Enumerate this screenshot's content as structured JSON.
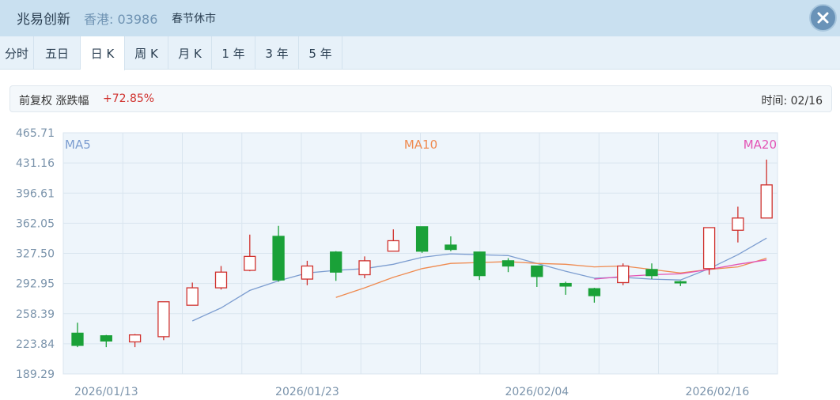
{
  "header": {
    "name": "兆易创新",
    "market_code": "香港: 03986",
    "status": "春节休市",
    "close_icon": "close-icon"
  },
  "tabs": [
    {
      "label": "分时",
      "active": false
    },
    {
      "label": "五日",
      "active": false
    },
    {
      "label": "日 K",
      "active": true
    },
    {
      "label": "周 K",
      "active": false
    },
    {
      "label": "月 K",
      "active": false
    },
    {
      "label": "1 年",
      "active": false
    },
    {
      "label": "3 年",
      "active": false
    },
    {
      "label": "5 年",
      "active": false
    }
  ],
  "info": {
    "label": "前复权 涨跌幅",
    "change": "+72.85%",
    "time": "时间: 02/16"
  },
  "colors": {
    "up": "#d0312d",
    "down": "#1aa138",
    "ma5": "#7c9dd0",
    "ma10": "#ef8a4f",
    "ma20": "#e354b5",
    "plot_bg": "#eef5fb",
    "grid": "#d9e5ef"
  },
  "chart_data": {
    "type": "candlestick",
    "ylim": [
      189.29,
      465.71
    ],
    "y_ticks": [
      "465.71",
      "431.16",
      "396.61",
      "362.05",
      "327.50",
      "292.95",
      "258.39",
      "223.84",
      "189.29"
    ],
    "x_labels": [
      {
        "index": 1,
        "label": "2026/01/13"
      },
      {
        "index": 8,
        "label": "2026/01/23"
      },
      {
        "index": 16,
        "label": "2026/02/04"
      },
      {
        "index": 23,
        "label": "2026/02/16"
      }
    ],
    "legend": [
      {
        "name": "MA5",
        "color": "#7c9dd0"
      },
      {
        "name": "MA10",
        "color": "#ef8a4f"
      },
      {
        "name": "MA20",
        "color": "#e354b5"
      }
    ],
    "candles": [
      {
        "open": 236,
        "close": 222,
        "high": 248,
        "low": 220
      },
      {
        "open": 233,
        "close": 227,
        "high": 234,
        "low": 220
      },
      {
        "open": 226,
        "close": 234,
        "high": 235,
        "low": 220
      },
      {
        "open": 232,
        "close": 272,
        "high": 272,
        "low": 228
      },
      {
        "open": 268,
        "close": 288,
        "high": 294,
        "low": 268
      },
      {
        "open": 288,
        "close": 306,
        "high": 313,
        "low": 286
      },
      {
        "open": 308,
        "close": 324,
        "high": 349,
        "low": 307
      },
      {
        "open": 347,
        "close": 297,
        "high": 359,
        "low": 295
      },
      {
        "open": 298,
        "close": 313,
        "high": 319,
        "low": 291
      },
      {
        "open": 329,
        "close": 306,
        "high": 330,
        "low": 296
      },
      {
        "open": 303,
        "close": 319,
        "high": 324,
        "low": 299
      },
      {
        "open": 330,
        "close": 342,
        "high": 355,
        "low": 330
      },
      {
        "open": 358,
        "close": 330,
        "high": 358,
        "low": 328
      },
      {
        "open": 337,
        "close": 332,
        "high": 347,
        "low": 330
      },
      {
        "open": 329,
        "close": 302,
        "high": 329,
        "low": 297
      },
      {
        "open": 319,
        "close": 313,
        "high": 322,
        "low": 306
      },
      {
        "open": 313,
        "close": 301,
        "high": 313,
        "low": 289
      },
      {
        "open": 293,
        "close": 290,
        "high": 295,
        "low": 280
      },
      {
        "open": 287,
        "close": 279,
        "high": 288,
        "low": 271
      },
      {
        "open": 294,
        "close": 313,
        "high": 316,
        "low": 291
      },
      {
        "open": 309,
        "close": 302,
        "high": 316,
        "low": 298
      },
      {
        "open": 295,
        "close": 294,
        "high": 296,
        "low": 290
      },
      {
        "open": 310,
        "close": 357,
        "high": 357,
        "low": 303
      },
      {
        "open": 354,
        "close": 368,
        "high": 381,
        "low": 340
      },
      {
        "open": 368,
        "close": 406,
        "high": 435,
        "low": 368
      }
    ],
    "ma5": [
      null,
      null,
      null,
      null,
      250,
      265,
      285,
      296,
      305,
      308,
      310,
      315,
      323,
      327,
      326,
      325,
      316,
      307,
      299,
      300,
      298,
      297,
      310,
      326,
      345
    ],
    "ma10": [
      null,
      null,
      null,
      null,
      null,
      null,
      null,
      null,
      null,
      277,
      288,
      300,
      310,
      316,
      317,
      318,
      316,
      315,
      312,
      313,
      309,
      305,
      309,
      312,
      322
    ],
    "ma20": [
      null,
      null,
      null,
      null,
      null,
      null,
      null,
      null,
      null,
      null,
      null,
      null,
      null,
      null,
      null,
      null,
      null,
      null,
      298,
      301,
      303,
      304,
      309,
      315,
      320
    ]
  }
}
